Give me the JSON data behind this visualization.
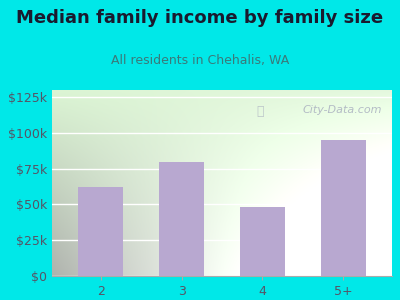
{
  "categories": [
    "2",
    "3",
    "4",
    "5+"
  ],
  "values": [
    62000,
    80000,
    48000,
    95000
  ],
  "bar_color": "#b8a8d0",
  "title": "Median family income by family size",
  "subtitle": "All residents in Chehalis, WA",
  "background_color": "#00e8e8",
  "yticks": [
    0,
    25000,
    50000,
    75000,
    100000,
    125000
  ],
  "ytick_labels": [
    "$0",
    "$25k",
    "$50k",
    "$75k",
    "$100k",
    "$125k"
  ],
  "ylim": [
    0,
    130000
  ],
  "title_color": "#1a1a2e",
  "subtitle_color": "#3a7a7a",
  "tick_color": "#555566",
  "watermark": "City-Data.com",
  "watermark_color": "#aab0c0",
  "plot_bg_color": "#eef5e8",
  "grid_color": "#ddeedd",
  "title_fontsize": 13,
  "subtitle_fontsize": 9,
  "tick_fontsize": 9
}
